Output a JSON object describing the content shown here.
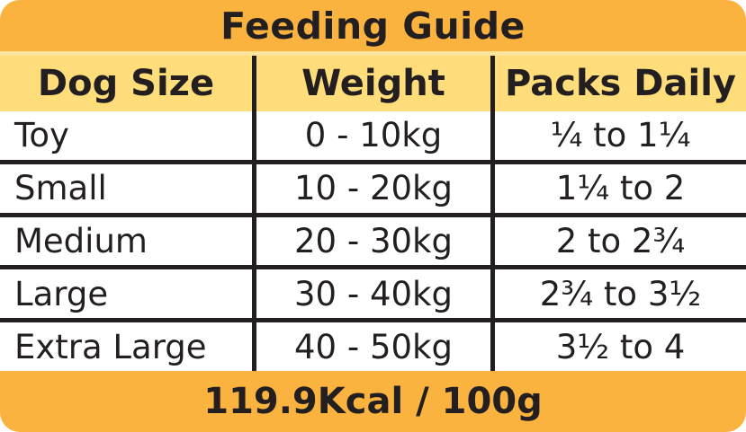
{
  "chart_data": {
    "type": "table",
    "title": "Feeding Guide",
    "columns": [
      "Dog Size",
      "Weight",
      "Packs Daily"
    ],
    "rows": [
      [
        "Toy",
        "0 - 10kg",
        "¼ to 1¼"
      ],
      [
        "Small",
        "10 - 20kg",
        "1¼ to 2"
      ],
      [
        "Medium",
        "20 - 30kg",
        "2 to 2¾"
      ],
      [
        "Large",
        "30 - 40kg",
        "2¾ to 3½"
      ],
      [
        "Extra Large",
        "40 - 50kg",
        "3½ to 4"
      ]
    ],
    "footer": "119.9Kcal / 100g"
  },
  "colors": {
    "orange_band": "#FBB340",
    "header_yellow": "#FEDD7A",
    "pale_strip": "#FEE59A",
    "grid_line": "#231F20",
    "text": "#231F20",
    "row_background": "#FFFFFF"
  }
}
